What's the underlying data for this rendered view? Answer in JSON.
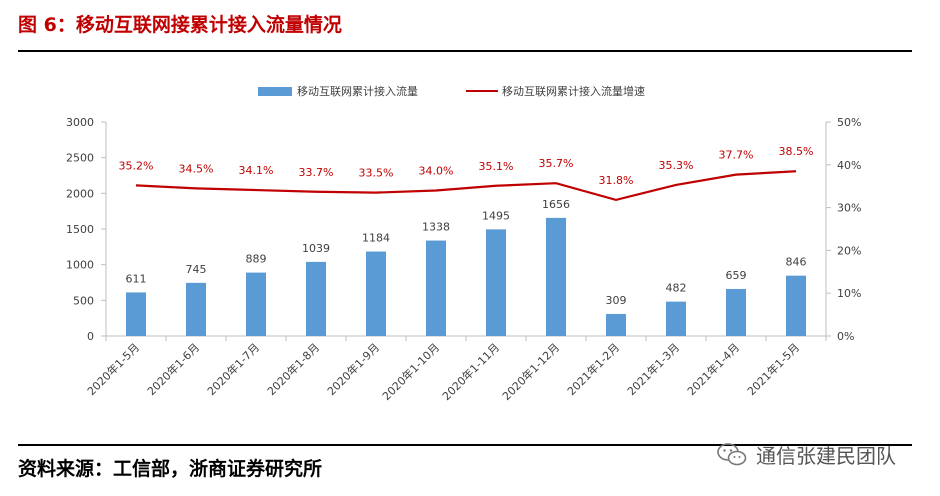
{
  "header": {
    "title": "图 6：移动互联网接累计接入流量情况"
  },
  "footer": {
    "source": "资料来源：工信部，浙商证券研究所"
  },
  "watermark": {
    "text": "通信张建民团队",
    "icon": "wechat-icon"
  },
  "colors": {
    "bar": "#5b9bd5",
    "line": "#c00000",
    "title": "#c00000"
  },
  "chart_data": {
    "type": "bar",
    "title": "",
    "categories": [
      "2020年1-5月",
      "2020年1-6月",
      "2020年1-7月",
      "2020年1-8月",
      "2020年1-9月",
      "2020年1-10月",
      "2020年1-11月",
      "2020年1-12月",
      "2021年1-2月",
      "2021年1-3月",
      "2021年1-4月",
      "2021年1-5月"
    ],
    "series": [
      {
        "name": "移动互联网累计接入流量",
        "type": "bar",
        "axis": "left",
        "values": [
          611,
          745,
          889,
          1039,
          1184,
          1338,
          1495,
          1656,
          309,
          482,
          659,
          846
        ],
        "labels": [
          "611",
          "745",
          "889",
          "1039",
          "1184",
          "1338",
          "1495",
          "1656",
          "309",
          "482",
          "659",
          "846"
        ]
      },
      {
        "name": "移动互联网累计接入流量增速",
        "type": "line",
        "axis": "right",
        "values": [
          35.2,
          34.5,
          34.1,
          33.7,
          33.5,
          34.0,
          35.1,
          35.7,
          31.8,
          35.3,
          37.7,
          38.5
        ],
        "labels": [
          "35.2%",
          "34.5%",
          "34.1%",
          "33.7%",
          "33.5%",
          "34.0%",
          "35.1%",
          "35.7%",
          "31.8%",
          "35.3%",
          "37.7%",
          "38.5%"
        ]
      }
    ],
    "y_left": {
      "ylim": [
        0,
        3000
      ],
      "ticks": [
        "0",
        "500",
        "1000",
        "1500",
        "2000",
        "2500",
        "3000"
      ]
    },
    "y_right": {
      "ylim": [
        0,
        50
      ],
      "ticks": [
        "0%",
        "10%",
        "20%",
        "30%",
        "40%",
        "50%"
      ]
    },
    "grid": false,
    "legend": "top-center"
  }
}
